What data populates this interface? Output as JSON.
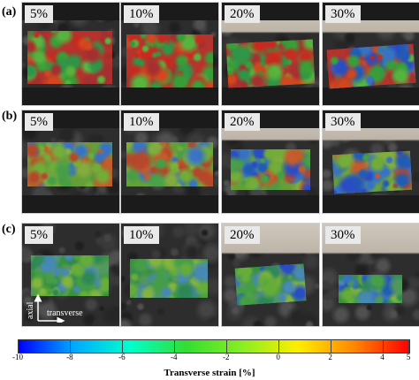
{
  "rows": [
    {
      "label": "(a)",
      "panels": [
        "5%",
        "10%",
        "20%",
        "30%"
      ]
    },
    {
      "label": "(b)",
      "panels": [
        "5%",
        "10%",
        "20%",
        "30%"
      ]
    },
    {
      "label": "(c)",
      "panels": [
        "5%",
        "10%",
        "20%",
        "30%"
      ]
    }
  ],
  "axes_icon": {
    "vertical": "axial",
    "horizontal": "transverse"
  },
  "colorbar": {
    "label": "Transverse strain [%]",
    "ticks": [
      "-10",
      "-8",
      "-6",
      "-4",
      "-2",
      "0",
      "2",
      "4",
      "5"
    ],
    "colors": [
      "#0000ff",
      "#00aaff",
      "#00ffcc",
      "#33dd33",
      "#88ee22",
      "#ffee00",
      "#ff8800",
      "#ff0000"
    ]
  }
}
